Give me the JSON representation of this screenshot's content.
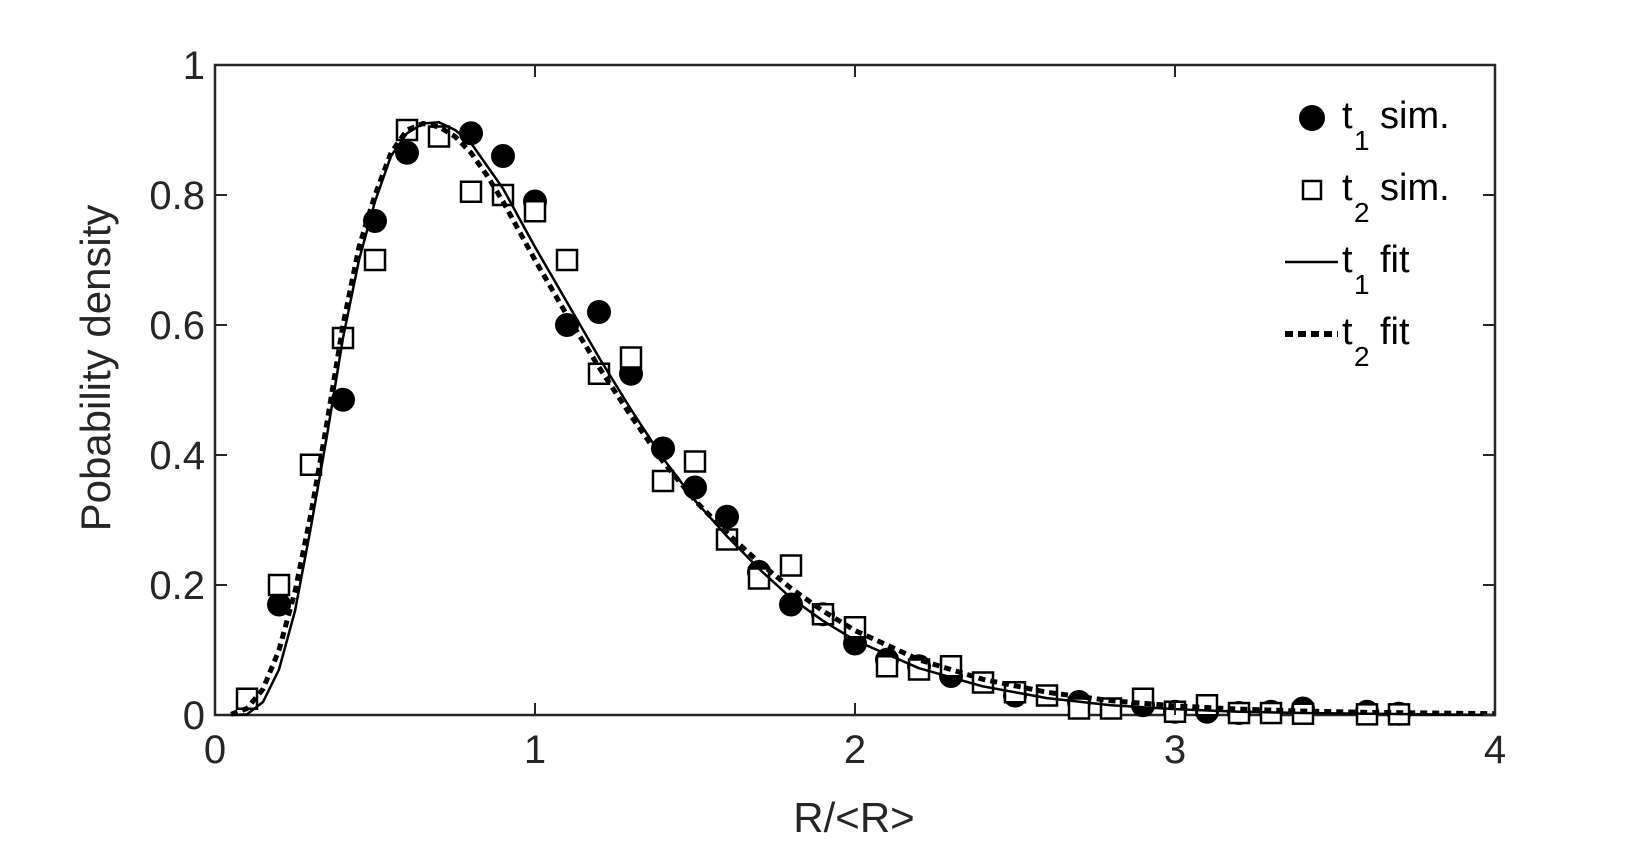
{
  "chart_data": {
    "type": "scatter",
    "xlabel": "R/<R>",
    "ylabel": "Pobability density",
    "xlim": [
      0,
      4
    ],
    "ylim": [
      0,
      1
    ],
    "xticks": [
      "0",
      "1",
      "2",
      "3",
      "4"
    ],
    "yticks": [
      "0",
      "0.2",
      "0.4",
      "0.6",
      "0.8",
      "1"
    ],
    "grid": false,
    "legend_position": "top-right",
    "series": [
      {
        "name": "sim.",
        "legend_main": "t",
        "legend_sub": "1",
        "style": "filled-circle",
        "x": [
          0.2,
          0.4,
          0.5,
          0.6,
          0.8,
          0.9,
          1.0,
          1.1,
          1.2,
          1.3,
          1.4,
          1.5,
          1.6,
          1.7,
          1.8,
          1.9,
          2.0,
          2.1,
          2.2,
          2.3,
          2.5,
          2.7,
          2.9,
          3.0,
          3.1,
          3.2,
          3.3,
          3.4,
          3.6,
          3.7
        ],
        "y": [
          0.17,
          0.485,
          0.76,
          0.865,
          0.895,
          0.86,
          0.79,
          0.6,
          0.62,
          0.525,
          0.41,
          0.35,
          0.305,
          0.22,
          0.17,
          0.155,
          0.11,
          0.085,
          0.075,
          0.06,
          0.03,
          0.02,
          0.015,
          0.005,
          0.005,
          0.003,
          0.005,
          0.01,
          0.005,
          0.002
        ]
      },
      {
        "name": "sim.",
        "legend_main": "t",
        "legend_sub": "2",
        "style": "open-square",
        "x": [
          0.1,
          0.2,
          0.3,
          0.4,
          0.5,
          0.6,
          0.7,
          0.8,
          0.9,
          1.0,
          1.1,
          1.2,
          1.3,
          1.4,
          1.5,
          1.6,
          1.7,
          1.8,
          1.9,
          2.0,
          2.1,
          2.2,
          2.3,
          2.4,
          2.5,
          2.6,
          2.7,
          2.8,
          2.9,
          3.0,
          3.1,
          3.2,
          3.3,
          3.4,
          3.6,
          3.7
        ],
        "y": [
          0.025,
          0.2,
          0.385,
          0.58,
          0.7,
          0.9,
          0.89,
          0.805,
          0.8,
          0.775,
          0.7,
          0.525,
          0.55,
          0.36,
          0.39,
          0.27,
          0.21,
          0.23,
          0.155,
          0.135,
          0.075,
          0.07,
          0.075,
          0.05,
          0.035,
          0.03,
          0.01,
          0.01,
          0.025,
          0.005,
          0.015,
          0.003,
          0.003,
          0.002,
          0.001,
          0.001
        ]
      },
      {
        "name": "fit",
        "legend_main": "t",
        "legend_sub": "1",
        "style": "solid-line",
        "x": [
          0.05,
          0.1,
          0.15,
          0.2,
          0.25,
          0.3,
          0.35,
          0.4,
          0.45,
          0.5,
          0.55,
          0.6,
          0.65,
          0.7,
          0.75,
          0.8,
          0.85,
          0.9,
          0.95,
          1.0,
          1.1,
          1.2,
          1.3,
          1.4,
          1.5,
          1.6,
          1.7,
          1.8,
          1.9,
          2.0,
          2.2,
          2.4,
          2.6,
          2.8,
          3.0,
          3.2,
          3.4,
          3.6,
          3.8,
          4.0
        ],
        "y": [
          0.0,
          0.001,
          0.02,
          0.07,
          0.16,
          0.29,
          0.43,
          0.58,
          0.7,
          0.79,
          0.86,
          0.895,
          0.91,
          0.912,
          0.9,
          0.88,
          0.845,
          0.81,
          0.765,
          0.72,
          0.635,
          0.55,
          0.47,
          0.395,
          0.33,
          0.275,
          0.225,
          0.18,
          0.145,
          0.115,
          0.072,
          0.044,
          0.026,
          0.015,
          0.009,
          0.005,
          0.003,
          0.002,
          0.001,
          0.0
        ]
      },
      {
        "name": "fit",
        "legend_main": "t",
        "legend_sub": "2",
        "style": "dotted-thick-line",
        "x": [
          0.05,
          0.1,
          0.15,
          0.2,
          0.25,
          0.3,
          0.35,
          0.4,
          0.45,
          0.5,
          0.55,
          0.6,
          0.65,
          0.7,
          0.75,
          0.8,
          0.85,
          0.9,
          0.95,
          1.0,
          1.1,
          1.2,
          1.3,
          1.4,
          1.5,
          1.6,
          1.7,
          1.8,
          1.9,
          2.0,
          2.2,
          2.4,
          2.6,
          2.8,
          3.0,
          3.2,
          3.4,
          3.6,
          3.8,
          4.0
        ],
        "y": [
          0.001,
          0.01,
          0.04,
          0.1,
          0.19,
          0.31,
          0.45,
          0.6,
          0.72,
          0.8,
          0.865,
          0.9,
          0.91,
          0.905,
          0.89,
          0.865,
          0.83,
          0.79,
          0.745,
          0.7,
          0.615,
          0.535,
          0.46,
          0.39,
          0.33,
          0.28,
          0.235,
          0.195,
          0.16,
          0.13,
          0.085,
          0.055,
          0.035,
          0.022,
          0.014,
          0.009,
          0.006,
          0.004,
          0.003,
          0.002
        ]
      }
    ]
  }
}
